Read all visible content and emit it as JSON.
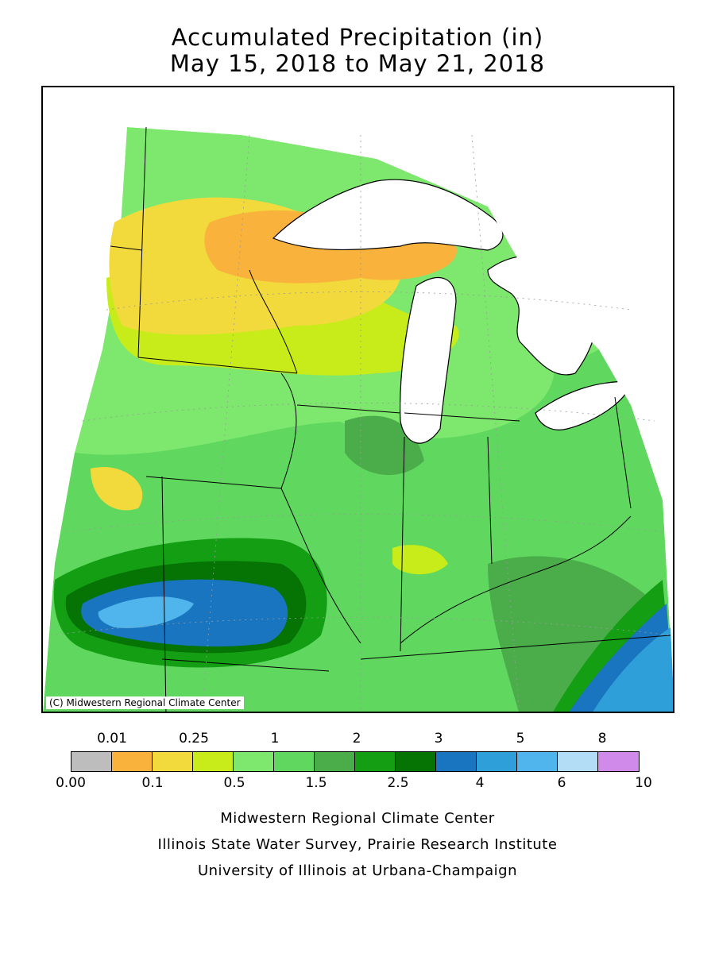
{
  "title": {
    "line1": "Accumulated Precipitation (in)",
    "line2": "May 15, 2018 to May 21, 2018"
  },
  "map": {
    "copyright": "(C) Midwestern Regional Climate Center",
    "region": "Upper Midwest / Great Lakes",
    "shading_colors": {
      "orange": "#f9b23b",
      "yellow": "#f2d93c",
      "yellow_green": "#c7ec1a",
      "light_green": "#7ee86e",
      "green": "#60d860",
      "mid_green": "#4aad4a",
      "dark_green": "#139e13",
      "darkest_green": "#057405",
      "deep_blue": "#1975c0",
      "blue": "#2f9fd9",
      "light_blue": "#4fb5ec",
      "water": "#ffffff"
    }
  },
  "legend": {
    "top_labels": [
      "0.01",
      "0.25",
      "1",
      "2",
      "3",
      "5",
      "8"
    ],
    "bottom_labels": [
      "0.00",
      "0.1",
      "0.5",
      "1.5",
      "2.5",
      "4",
      "6",
      "10"
    ],
    "colors": [
      "#bdbdbd",
      "#f9b23b",
      "#f2d93c",
      "#c7ec1a",
      "#7ee86e",
      "#60d860",
      "#4aad4a",
      "#139e13",
      "#057405",
      "#1975c0",
      "#2f9fd9",
      "#4fb5ec",
      "#b3dcf7",
      "#d08ae9"
    ]
  },
  "credits": {
    "line1": "Midwestern Regional Climate Center",
    "line2": "Illinois State Water Survey, Prairie Research Institute",
    "line3": "University of Illinois at Urbana-Champaign"
  }
}
